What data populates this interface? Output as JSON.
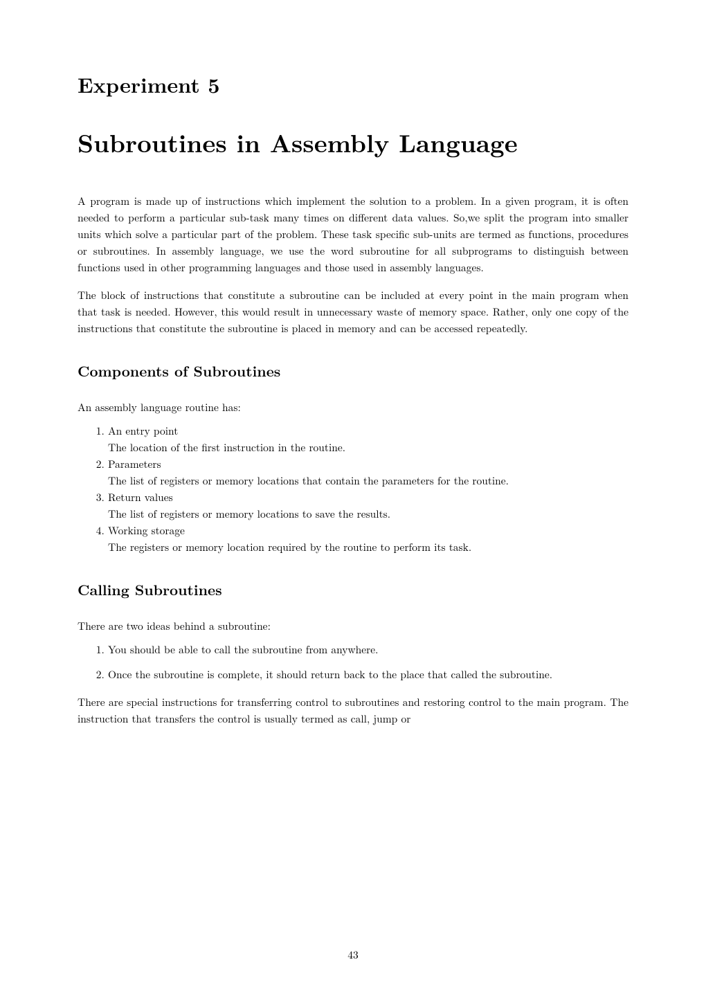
{
  "chapter": {
    "label": "Experiment 5",
    "title": "Subroutines in Assembly Language"
  },
  "intro": {
    "p1": "A program is made up of instructions which implement the solution to a problem. In a given program, it is often needed to perform a particular sub-task many times on different data values. So,we split the program into smaller units which solve a particular part of the problem. These task specific sub-units are termed as functions, procedures or subroutines. In assembly language, we use the word subroutine for all subprograms to distinguish between functions used in other programming languages and those used in assembly languages.",
    "p2": "The block of instructions that constitute a subroutine can be included at every point in the main program when that task is needed. However, this would result in unnecessary waste of memory space. Rather, only one copy of the instructions that constitute the subroutine is placed in memory and can be accessed repeatedly."
  },
  "section1": {
    "heading": "Components of Subroutines",
    "intro": "An assembly language routine has:",
    "items": [
      {
        "head": "An entry point",
        "desc": "The location of the first instruction in the routine."
      },
      {
        "head": "Parameters",
        "desc": "The list of registers or memory locations that contain the parameters for the routine."
      },
      {
        "head": "Return values",
        "desc": "The list of registers or memory locations to save the results."
      },
      {
        "head": "Working storage",
        "desc": "The registers or memory location required by the routine to perform its task."
      }
    ]
  },
  "section2": {
    "heading": "Calling Subroutines",
    "intro": "There are two ideas behind a subroutine:",
    "items": [
      "You should be able to call the subroutine from anywhere.",
      "Once the subroutine is complete, it should return back to the place that called the subroutine."
    ],
    "outro": "There are special instructions for transferring control to subroutines and restoring control to the main program. The instruction that transfers the control is usually termed as call, jump or"
  },
  "pageNumber": "43"
}
